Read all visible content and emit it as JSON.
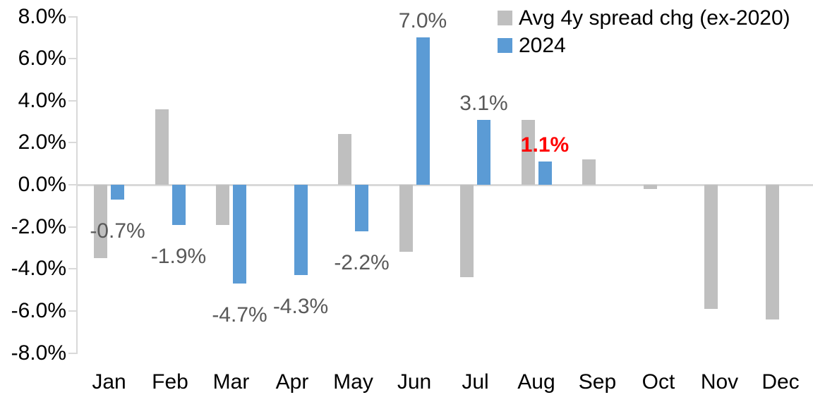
{
  "chart_data": {
    "type": "bar",
    "categories": [
      "Jan",
      "Feb",
      "Mar",
      "Apr",
      "May",
      "Jun",
      "Jul",
      "Aug",
      "Sep",
      "Oct",
      "Nov",
      "Dec"
    ],
    "series": [
      {
        "name": "Avg 4y spread chg (ex-2020)",
        "color": "#BFBFBF",
        "values": [
          -3.5,
          3.6,
          -1.9,
          0.0,
          2.4,
          -3.2,
          -4.4,
          3.1,
          1.2,
          -0.2,
          -5.9,
          -6.4
        ]
      },
      {
        "name": "2024",
        "color": "#5B9BD5",
        "values": [
          -0.7,
          -1.9,
          -4.7,
          -4.3,
          -2.2,
          7.0,
          3.1,
          1.1,
          null,
          null,
          null,
          null
        ]
      }
    ],
    "data_labels": {
      "series": "2024",
      "texts": [
        "-0.7%",
        "-1.9%",
        "-4.7%",
        "-4.3%",
        "-2.2%",
        "7.0%",
        "3.1%",
        "1.1%",
        null,
        null,
        null,
        null
      ],
      "color": "#595959",
      "highlight_index": 7,
      "highlight_color": "#FF0000"
    },
    "y_axis": {
      "ticks": [
        "8.0%",
        "6.0%",
        "4.0%",
        "2.0%",
        "0.0%",
        "-2.0%",
        "-4.0%",
        "-6.0%",
        "-8.0%"
      ],
      "tick_values": [
        8,
        6,
        4,
        2,
        0,
        -2,
        -4,
        -6,
        -8
      ],
      "min": -8,
      "max": 8
    },
    "legend": {
      "position": "top-right",
      "entries": [
        {
          "label": "Avg 4y spread chg (ex-2020)",
          "color": "#BFBFBF"
        },
        {
          "label": "2024",
          "color": "#5B9BD5"
        }
      ]
    },
    "axis_color": "#D9D9D9",
    "text_color": "#000000",
    "grid": false
  }
}
